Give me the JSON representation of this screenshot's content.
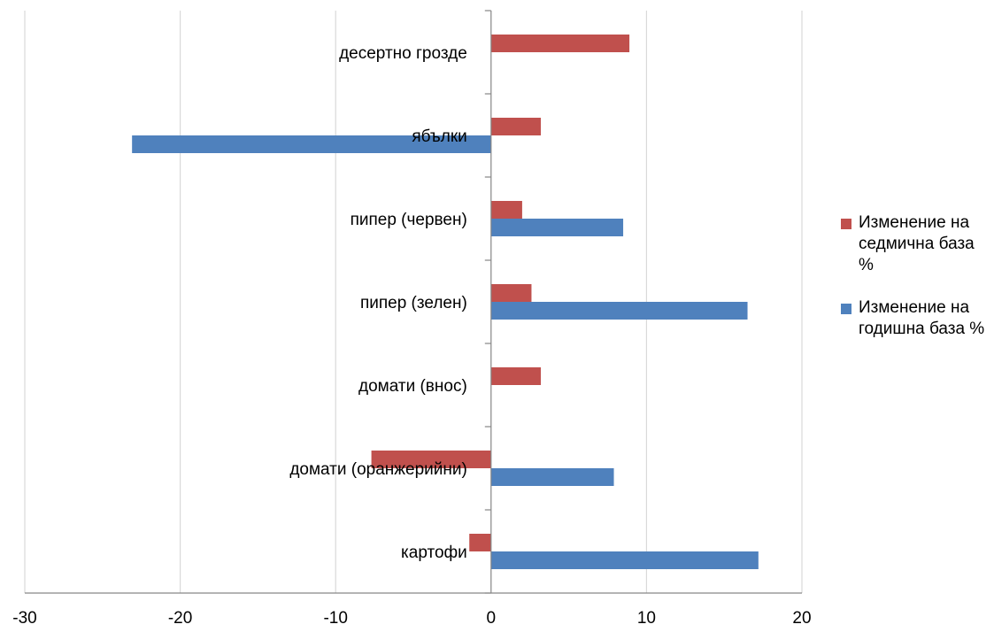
{
  "chart_data": {
    "type": "bar",
    "orientation": "horizontal",
    "categories": [
      "десертно грозде",
      "ябълки",
      "пипер (червен)",
      "пипер (зелен)",
      "домати (внос)",
      "домати (оранжерийни)",
      "картофи"
    ],
    "series": [
      {
        "name": "Изменение на седмична база %",
        "color": "#c0504d",
        "values": [
          8.9,
          3.2,
          2.0,
          2.6,
          3.2,
          -7.7,
          -1.4
        ]
      },
      {
        "name": "Изменение на годишна база %",
        "color": "#4f81bd",
        "values": [
          null,
          -23.1,
          8.5,
          16.5,
          null,
          7.9,
          17.2
        ]
      }
    ],
    "xlim": [
      -30,
      20
    ],
    "xticks": [
      "-30",
      "-20",
      "-10",
      "0",
      "10",
      "20"
    ],
    "grid": true,
    "legend": "right",
    "title": "",
    "xlabel": "",
    "ylabel": ""
  }
}
